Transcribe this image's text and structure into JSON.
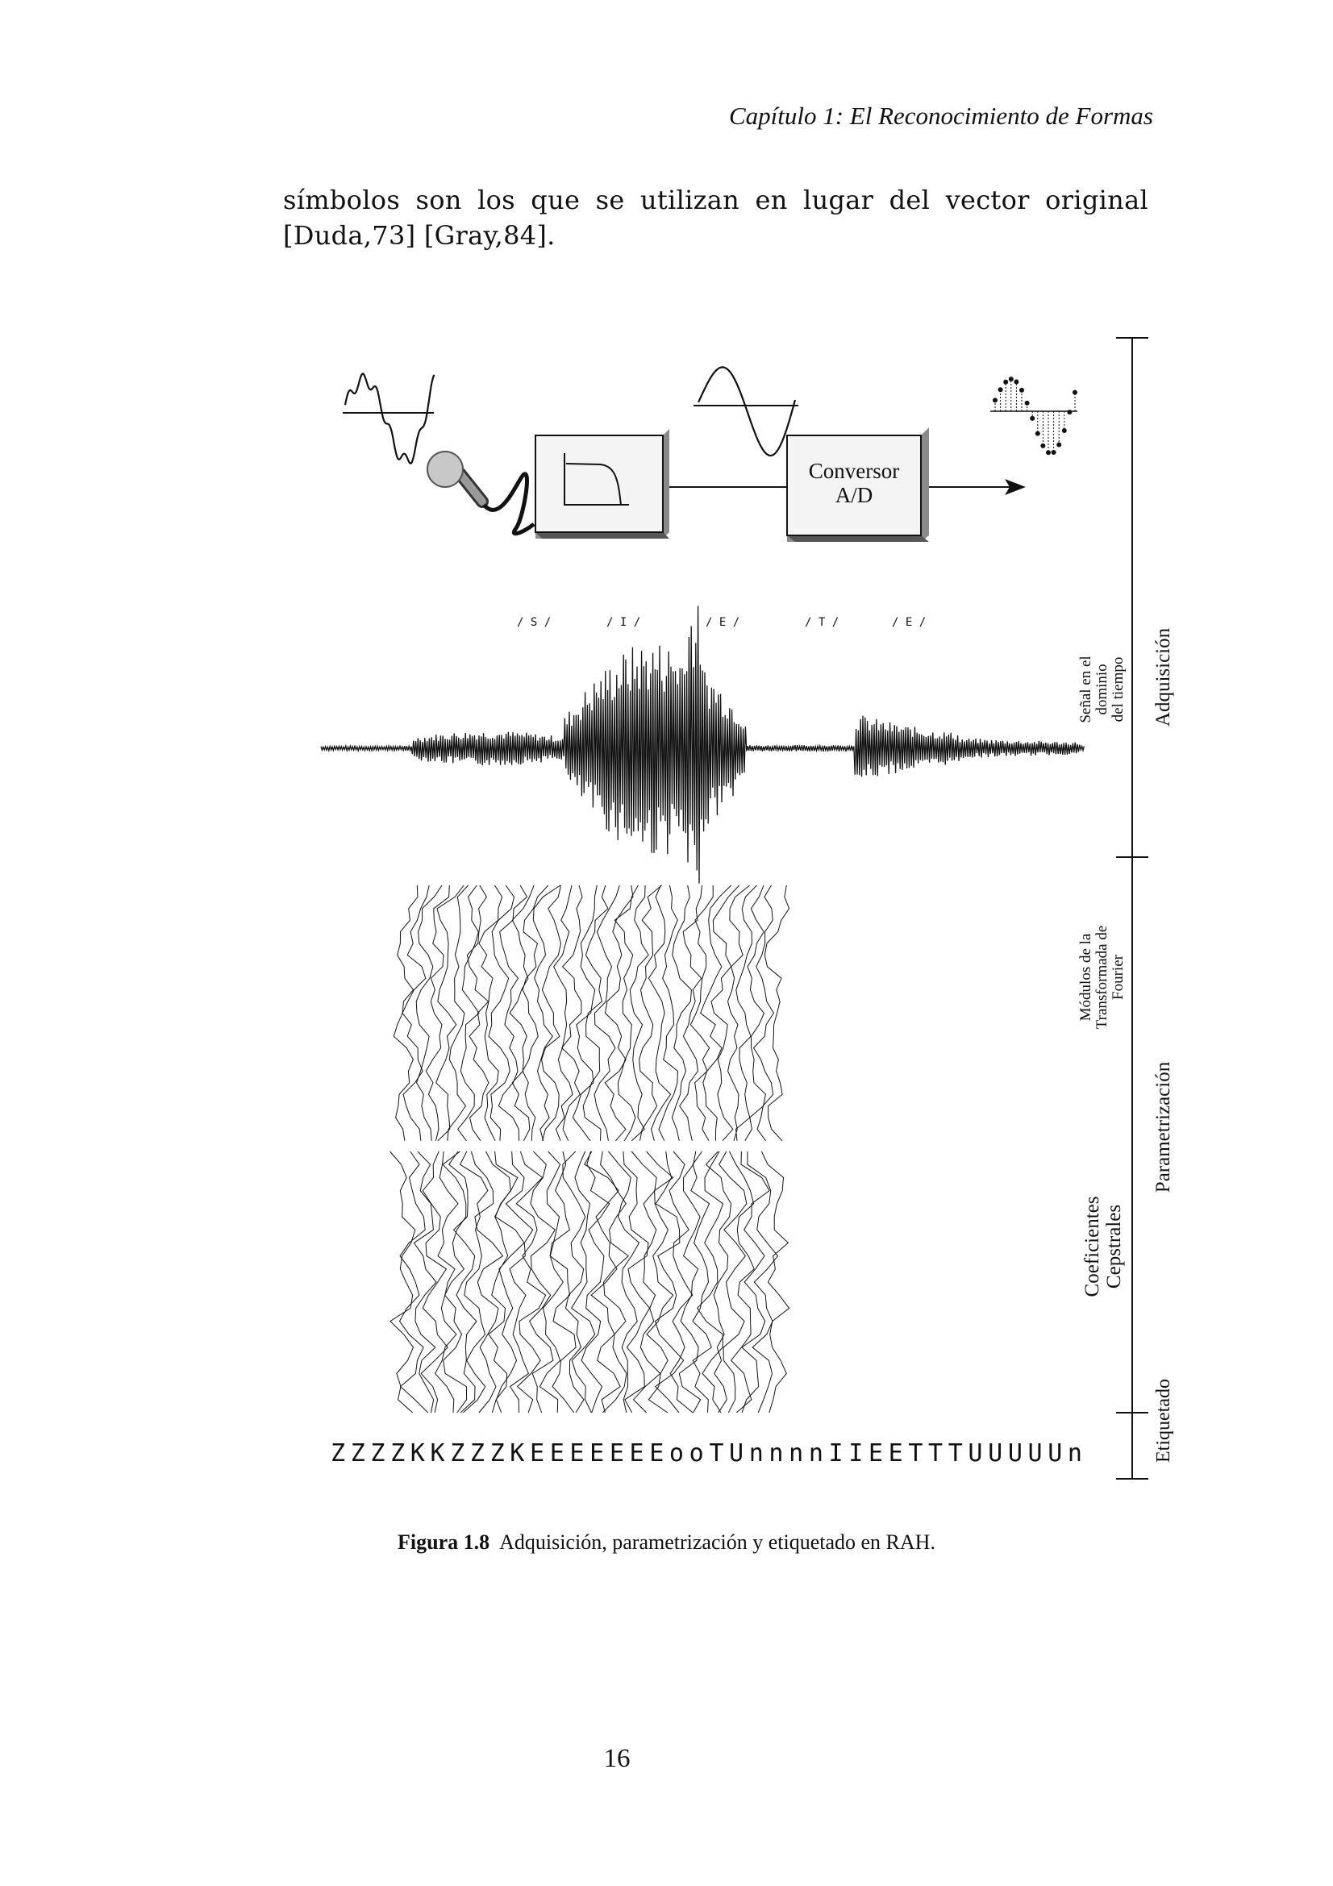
{
  "page": {
    "header": "Capítulo 1:  El Reconocimiento de Formas",
    "body_lines": [
      [
        "símbolos",
        "son",
        "los",
        "que",
        "se",
        "utilizan",
        "en",
        "lugar",
        "del",
        "vector",
        "original"
      ],
      "[Duda,73] [Gray,84]."
    ],
    "page_number": "16"
  },
  "figure": {
    "caption_label": "Figura 1.8",
    "caption_text": "Adquisición, parametrización y etiquetado en RAH.",
    "converter_label_line1": "Conversor",
    "converter_label_line2": "A/D",
    "phoneme_marks": [
      "/ S /",
      "/ I /",
      "/ E /",
      "/ T /",
      "/ E /"
    ],
    "row_labels": {
      "time_signal": [
        "Señal en el",
        "dominio",
        "del tiempo"
      ],
      "fourier": [
        "Módulos de la",
        "Transformada de",
        "Fourier"
      ],
      "cepstral": [
        "Coeficientes",
        "Cepstrales"
      ]
    },
    "section_labels": {
      "acquisition": "Adquisición",
      "parametrization": "Parametrización",
      "labeling": "Etiquetado"
    },
    "label_sequence": "Z Z Z Z K K Z Z Z K E E E E E E E o o T U n n n n I I E E T T T U U U U U n",
    "colors": {
      "ink": "#111111",
      "box_face": "#f4f4f4",
      "box_shadow": "#8a8a8a",
      "mic_head": "#c8c8c8"
    },
    "icons": [
      "microphone-icon",
      "filter-response-icon",
      "arrow-right-icon"
    ]
  }
}
